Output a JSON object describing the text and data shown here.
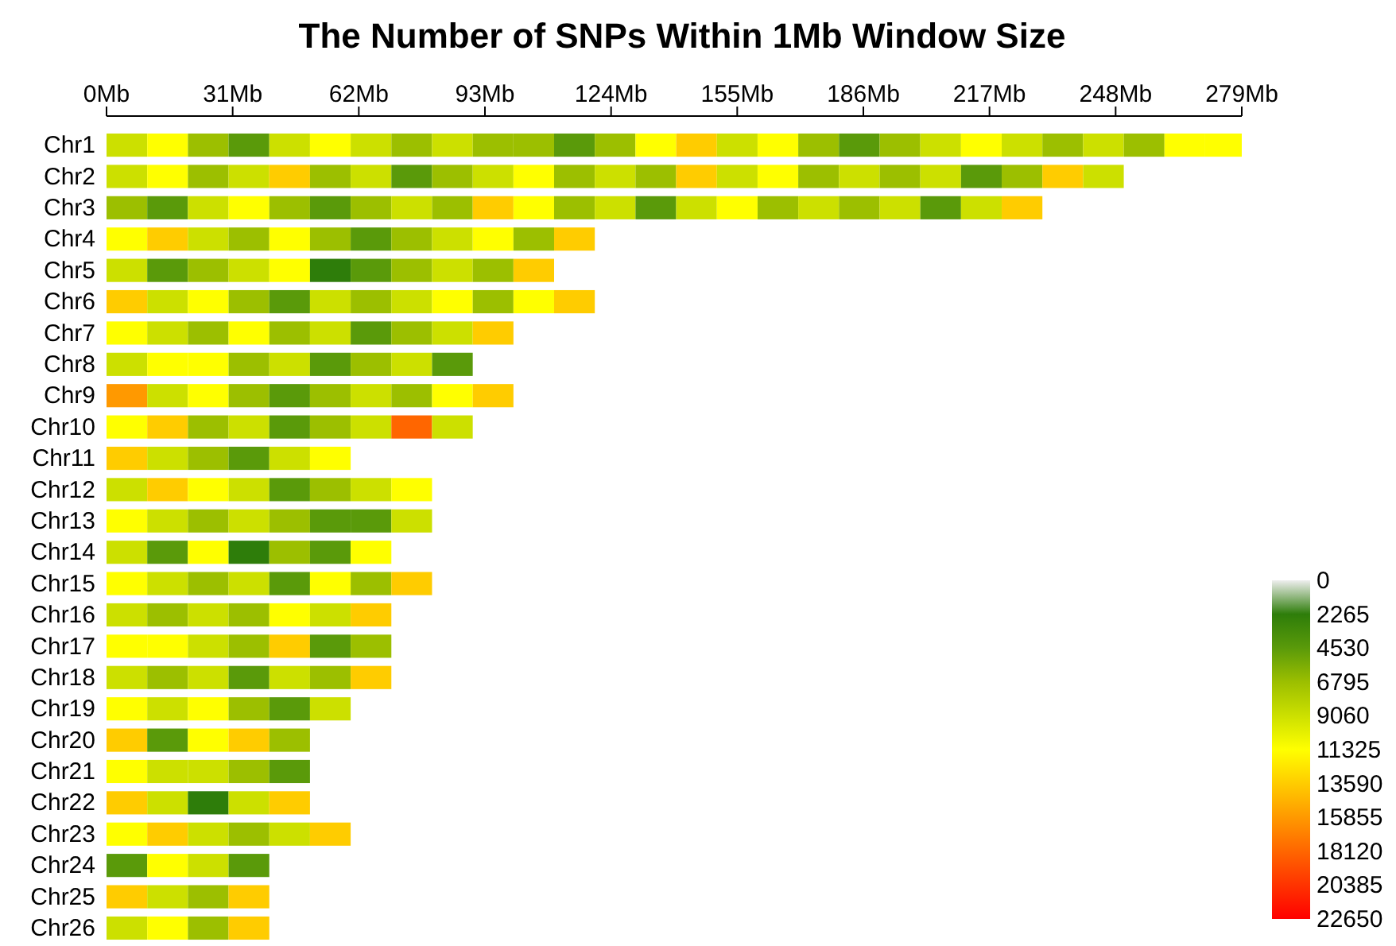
{
  "chart_data": {
    "type": "heatmap",
    "title": "The Number of SNPs Within 1Mb Window Size",
    "x": [
      5,
      15,
      25,
      35,
      45,
      55,
      65,
      75,
      85,
      95,
      105,
      115,
      125,
      135,
      145,
      155,
      165,
      175,
      185,
      195,
      205,
      215,
      225,
      235,
      245,
      255,
      265,
      275
    ],
    "xlim": [
      0,
      279
    ],
    "xticks": [
      {
        "value": 0,
        "label": "0Mb"
      },
      {
        "value": 31,
        "label": "31Mb"
      },
      {
        "value": 62,
        "label": "62Mb"
      },
      {
        "value": 93,
        "label": "93Mb"
      },
      {
        "value": 124,
        "label": "124Mb"
      },
      {
        "value": 155,
        "label": "155Mb"
      },
      {
        "value": 186,
        "label": "186Mb"
      },
      {
        "value": 217,
        "label": "217Mb"
      },
      {
        "value": 248,
        "label": "248Mb"
      },
      {
        "value": 279,
        "label": "279Mb"
      }
    ],
    "y_categories": [
      "Chr1",
      "Chr2",
      "Chr3",
      "Chr4",
      "Chr5",
      "Chr6",
      "Chr7",
      "Chr8",
      "Chr9",
      "Chr10",
      "Chr11",
      "Chr12",
      "Chr13",
      "Chr14",
      "Chr15",
      "Chr16",
      "Chr17",
      "Chr18",
      "Chr19",
      "Chr20",
      "Chr21",
      "Chr22",
      "Chr23",
      "Chr24",
      "Chr25",
      "Chr26"
    ],
    "cells": [
      [
        9060,
        11325,
        6795,
        4530,
        9060,
        11325,
        9060,
        6795,
        9060,
        6795,
        6795,
        4530,
        6795,
        11325,
        13590,
        9060,
        11325,
        6795,
        4530,
        6795,
        9060,
        11325,
        9060,
        6795,
        9060,
        6795,
        11325,
        11325
      ],
      [
        9060,
        11325,
        6795,
        9060,
        13590,
        6795,
        9060,
        4530,
        6795,
        9060,
        11325,
        6795,
        9060,
        6795,
        13590,
        9060,
        11325,
        6795,
        9060,
        6795,
        9060,
        4530,
        6795,
        13590,
        9060,
        null,
        null,
        null
      ],
      [
        6795,
        4530,
        9060,
        11325,
        6795,
        4530,
        6795,
        9060,
        6795,
        13590,
        11325,
        6795,
        9060,
        4530,
        9060,
        11325,
        6795,
        9060,
        6795,
        9060,
        4530,
        9060,
        13590,
        null,
        null,
        null,
        null,
        null
      ],
      [
        11325,
        13590,
        9060,
        6795,
        11325,
        6795,
        4530,
        6795,
        9060,
        11325,
        6795,
        13590,
        null,
        null,
        null,
        null,
        null,
        null,
        null,
        null,
        null,
        null,
        null,
        null,
        null,
        null,
        null,
        null
      ],
      [
        9060,
        4530,
        6795,
        9060,
        11325,
        2265,
        4530,
        6795,
        9060,
        6795,
        13590,
        null,
        null,
        null,
        null,
        null,
        null,
        null,
        null,
        null,
        null,
        null,
        null,
        null,
        null,
        null,
        null,
        null
      ],
      [
        13590,
        9060,
        11325,
        6795,
        4530,
        9060,
        6795,
        9060,
        11325,
        6795,
        11325,
        13590,
        null,
        null,
        null,
        null,
        null,
        null,
        null,
        null,
        null,
        null,
        null,
        null,
        null,
        null,
        null,
        null
      ],
      [
        11325,
        9060,
        6795,
        11325,
        6795,
        9060,
        4530,
        6795,
        9060,
        13590,
        null,
        null,
        null,
        null,
        null,
        null,
        null,
        null,
        null,
        null,
        null,
        null,
        null,
        null,
        null,
        null,
        null,
        null
      ],
      [
        9060,
        11325,
        11325,
        6795,
        9060,
        4530,
        6795,
        9060,
        4530,
        null,
        null,
        null,
        null,
        null,
        null,
        null,
        null,
        null,
        null,
        null,
        null,
        null,
        null,
        null,
        null,
        null,
        null,
        null
      ],
      [
        15855,
        9060,
        11325,
        6795,
        4530,
        6795,
        9060,
        6795,
        11325,
        13590,
        null,
        null,
        null,
        null,
        null,
        null,
        null,
        null,
        null,
        null,
        null,
        null,
        null,
        null,
        null,
        null,
        null,
        null
      ],
      [
        11325,
        13590,
        6795,
        9060,
        4530,
        6795,
        9060,
        18120,
        9060,
        null,
        null,
        null,
        null,
        null,
        null,
        null,
        null,
        null,
        null,
        null,
        null,
        null,
        null,
        null,
        null,
        null,
        null,
        null
      ],
      [
        13590,
        9060,
        6795,
        4530,
        9060,
        11325,
        null,
        null,
        null,
        null,
        null,
        null,
        null,
        null,
        null,
        null,
        null,
        null,
        null,
        null,
        null,
        null,
        null,
        null,
        null,
        null,
        null,
        null
      ],
      [
        9060,
        13590,
        11325,
        9060,
        4530,
        6795,
        9060,
        11325,
        null,
        null,
        null,
        null,
        null,
        null,
        null,
        null,
        null,
        null,
        null,
        null,
        null,
        null,
        null,
        null,
        null,
        null,
        null,
        null
      ],
      [
        11325,
        9060,
        6795,
        9060,
        6795,
        4530,
        4530,
        9060,
        null,
        null,
        null,
        null,
        null,
        null,
        null,
        null,
        null,
        null,
        null,
        null,
        null,
        null,
        null,
        null,
        null,
        null,
        null,
        null
      ],
      [
        9060,
        4530,
        11325,
        2265,
        6795,
        4530,
        11325,
        null,
        null,
        null,
        null,
        null,
        null,
        null,
        null,
        null,
        null,
        null,
        null,
        null,
        null,
        null,
        null,
        null,
        null,
        null,
        null,
        null
      ],
      [
        11325,
        9060,
        6795,
        9060,
        4530,
        11325,
        6795,
        13590,
        null,
        null,
        null,
        null,
        null,
        null,
        null,
        null,
        null,
        null,
        null,
        null,
        null,
        null,
        null,
        null,
        null,
        null,
        null,
        null
      ],
      [
        9060,
        6795,
        9060,
        6795,
        11325,
        9060,
        13590,
        null,
        null,
        null,
        null,
        null,
        null,
        null,
        null,
        null,
        null,
        null,
        null,
        null,
        null,
        null,
        null,
        null,
        null,
        null,
        null,
        null
      ],
      [
        11325,
        11325,
        9060,
        6795,
        13590,
        4530,
        6795,
        null,
        null,
        null,
        null,
        null,
        null,
        null,
        null,
        null,
        null,
        null,
        null,
        null,
        null,
        null,
        null,
        null,
        null,
        null,
        null,
        null
      ],
      [
        9060,
        6795,
        9060,
        4530,
        9060,
        6795,
        13590,
        null,
        null,
        null,
        null,
        null,
        null,
        null,
        null,
        null,
        null,
        null,
        null,
        null,
        null,
        null,
        null,
        null,
        null,
        null,
        null,
        null
      ],
      [
        11325,
        9060,
        11325,
        6795,
        4530,
        9060,
        null,
        null,
        null,
        null,
        null,
        null,
        null,
        null,
        null,
        null,
        null,
        null,
        null,
        null,
        null,
        null,
        null,
        null,
        null,
        null,
        null,
        null
      ],
      [
        13590,
        4530,
        11325,
        13590,
        6795,
        null,
        null,
        null,
        null,
        null,
        null,
        null,
        null,
        null,
        null,
        null,
        null,
        null,
        null,
        null,
        null,
        null,
        null,
        null,
        null,
        null,
        null,
        null
      ],
      [
        11325,
        9060,
        9060,
        6795,
        4530,
        null,
        null,
        null,
        null,
        null,
        null,
        null,
        null,
        null,
        null,
        null,
        null,
        null,
        null,
        null,
        null,
        null,
        null,
        null,
        null,
        null,
        null,
        null
      ],
      [
        13590,
        9060,
        2265,
        9060,
        13590,
        null,
        null,
        null,
        null,
        null,
        null,
        null,
        null,
        null,
        null,
        null,
        null,
        null,
        null,
        null,
        null,
        null,
        null,
        null,
        null,
        null,
        null,
        null
      ],
      [
        11325,
        13590,
        9060,
        6795,
        9060,
        13590,
        null,
        null,
        null,
        null,
        null,
        null,
        null,
        null,
        null,
        null,
        null,
        null,
        null,
        null,
        null,
        null,
        null,
        null,
        null,
        null,
        null,
        null
      ],
      [
        4530,
        11325,
        9060,
        4530,
        null,
        null,
        null,
        null,
        null,
        null,
        null,
        null,
        null,
        null,
        null,
        null,
        null,
        null,
        null,
        null,
        null,
        null,
        null,
        null,
        null,
        null,
        null,
        null
      ],
      [
        13590,
        9060,
        6795,
        13590,
        null,
        null,
        null,
        null,
        null,
        null,
        null,
        null,
        null,
        null,
        null,
        null,
        null,
        null,
        null,
        null,
        null,
        null,
        null,
        null,
        null,
        null,
        null,
        null
      ],
      [
        9060,
        11325,
        6795,
        13590,
        null,
        null,
        null,
        null,
        null,
        null,
        null,
        null,
        null,
        null,
        null,
        null,
        null,
        null,
        null,
        null,
        null,
        null,
        null,
        null,
        null,
        null,
        null,
        null
      ]
    ],
    "clim": [
      0,
      22650
    ],
    "cticks": [
      0,
      2265,
      4530,
      6795,
      9060,
      11325,
      13590,
      15855,
      18120,
      20385,
      22650
    ],
    "colors": [
      "#eeeeee",
      "#2e7d0a",
      "#5a9a0a",
      "#9cbf00",
      "#cce000",
      "#ffff00",
      "#ffcc00",
      "#ff9900",
      "#ff6600",
      "#ff3300",
      "#ff0000"
    ]
  }
}
